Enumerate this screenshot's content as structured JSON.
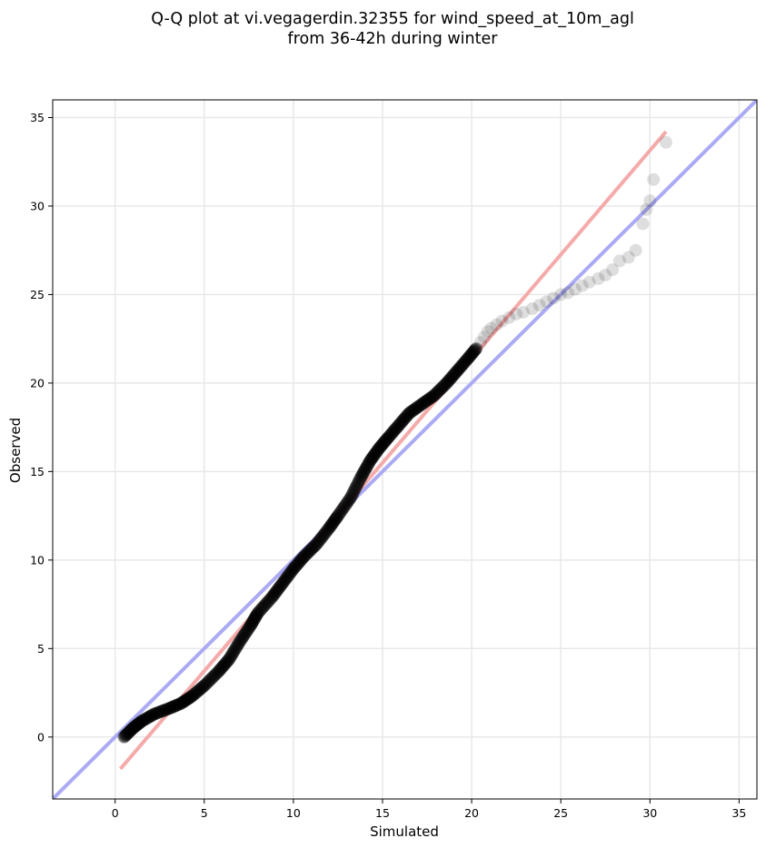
{
  "chart_data": {
    "type": "scatter",
    "title_lines": [
      "Q-Q plot at vi.vegagerdin.32355 for wind_speed_at_10m_agl",
      "from 36-42h during winter"
    ],
    "xlabel": "Simulated",
    "ylabel": "Observed",
    "xlim": [
      -3.5,
      36
    ],
    "ylim": [
      -3.5,
      36
    ],
    "xticks": [
      0,
      5,
      10,
      15,
      20,
      25,
      30,
      35
    ],
    "yticks": [
      0,
      5,
      10,
      15,
      20,
      25,
      30,
      35
    ],
    "grid": true,
    "reference_lines": [
      {
        "role": "identity",
        "color": "#aaaaf5",
        "points": [
          [
            -3.5,
            -3.5
          ],
          [
            36,
            36
          ]
        ]
      },
      {
        "role": "fit",
        "color": "#f5aaaa",
        "points": [
          [
            0.3,
            -1.8
          ],
          [
            30.9,
            34.2
          ]
        ]
      }
    ],
    "quantiles_dense": [
      [
        0.5,
        0.0
      ],
      [
        1.0,
        0.5
      ],
      [
        1.5,
        0.9
      ],
      [
        2.2,
        1.3
      ],
      [
        3.0,
        1.6
      ],
      [
        3.7,
        1.9
      ],
      [
        4.3,
        2.3
      ],
      [
        5.0,
        2.9
      ],
      [
        5.8,
        3.7
      ],
      [
        6.4,
        4.4
      ],
      [
        7.0,
        5.4
      ],
      [
        7.6,
        6.3
      ],
      [
        8.0,
        7.0
      ],
      [
        8.8,
        7.9
      ],
      [
        9.4,
        8.7
      ],
      [
        10.0,
        9.5
      ],
      [
        10.6,
        10.2
      ],
      [
        11.3,
        10.9
      ],
      [
        12.0,
        11.8
      ],
      [
        12.5,
        12.5
      ],
      [
        13.2,
        13.5
      ],
      [
        13.8,
        14.7
      ],
      [
        14.3,
        15.6
      ],
      [
        14.8,
        16.3
      ],
      [
        15.3,
        16.9
      ],
      [
        15.9,
        17.6
      ],
      [
        16.5,
        18.3
      ],
      [
        17.2,
        18.8
      ],
      [
        17.9,
        19.3
      ],
      [
        18.6,
        20.0
      ],
      [
        19.2,
        20.7
      ],
      [
        19.8,
        21.4
      ],
      [
        20.3,
        22.0
      ]
    ],
    "quantiles_tail": [
      [
        20.5,
        22.3
      ],
      [
        20.7,
        22.6
      ],
      [
        20.9,
        22.9
      ],
      [
        21.1,
        23.1
      ],
      [
        21.4,
        23.3
      ],
      [
        21.7,
        23.5
      ],
      [
        22.1,
        23.7
      ],
      [
        22.5,
        23.9
      ],
      [
        22.9,
        24.0
      ],
      [
        23.4,
        24.2
      ],
      [
        23.8,
        24.4
      ],
      [
        24.2,
        24.6
      ],
      [
        24.6,
        24.8
      ],
      [
        25.0,
        25.0
      ],
      [
        25.4,
        25.1
      ],
      [
        25.8,
        25.3
      ],
      [
        26.2,
        25.5
      ],
      [
        26.6,
        25.7
      ],
      [
        27.1,
        25.9
      ],
      [
        27.5,
        26.1
      ],
      [
        27.9,
        26.4
      ],
      [
        28.3,
        26.9
      ],
      [
        28.8,
        27.1
      ],
      [
        29.2,
        27.5
      ],
      [
        29.6,
        29.0
      ],
      [
        29.8,
        29.8
      ],
      [
        30.0,
        30.3
      ],
      [
        30.2,
        31.5
      ],
      [
        30.9,
        33.6
      ]
    ]
  }
}
